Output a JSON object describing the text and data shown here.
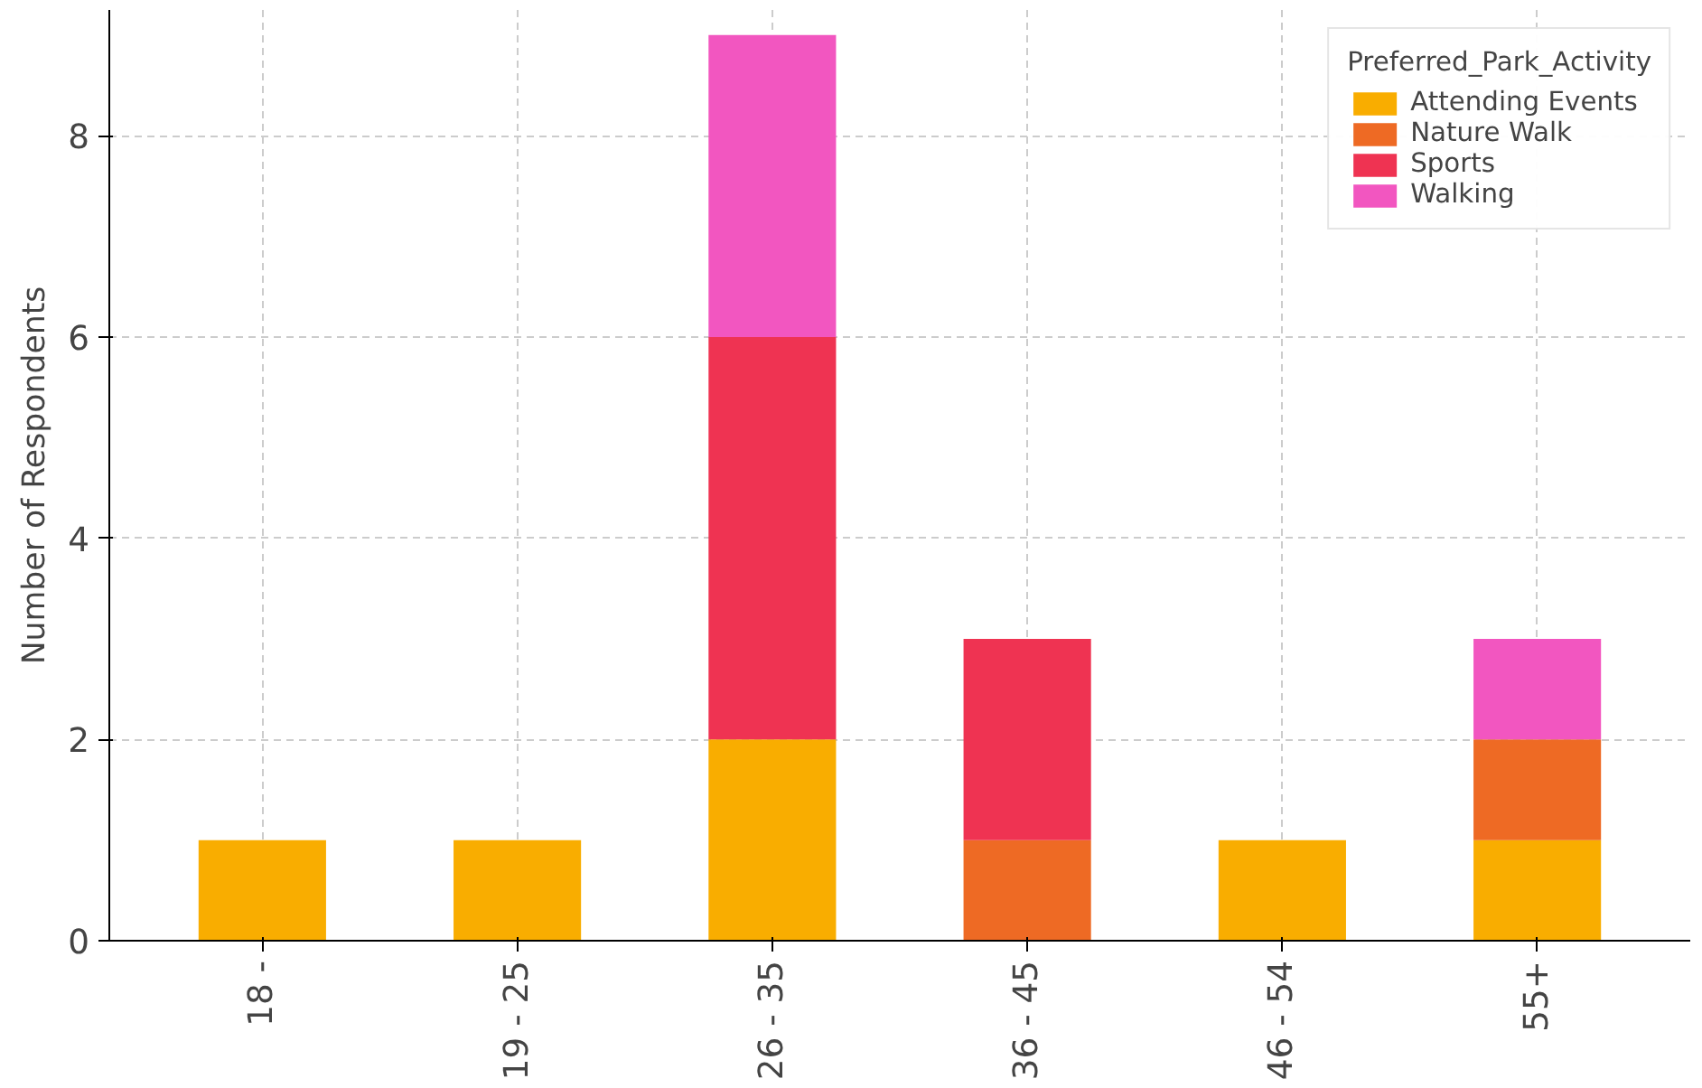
{
  "chart_data": {
    "type": "bar",
    "stacked": true,
    "ylabel": "Number of Respondents",
    "legend_title": "Preferred_Park_Activity",
    "categories": [
      "18 -",
      "19 - 25",
      "26 - 35",
      "36 - 45",
      "46 - 54",
      "55+"
    ],
    "series": [
      {
        "name": "Attending Events",
        "color": "#f9ad00",
        "values": [
          1,
          1,
          2,
          0,
          1,
          1
        ]
      },
      {
        "name": "Nature Walk",
        "color": "#ee6a24",
        "values": [
          0,
          0,
          0,
          1,
          0,
          1
        ]
      },
      {
        "name": "Sports",
        "color": "#ef3352",
        "values": [
          0,
          0,
          4,
          2,
          0,
          0
        ]
      },
      {
        "name": "Walking",
        "color": "#f256c0",
        "values": [
          0,
          0,
          3,
          0,
          0,
          1
        ]
      }
    ],
    "ylim": [
      0,
      9.25
    ],
    "yticks": [
      0,
      2,
      4,
      6,
      8
    ],
    "grid": true,
    "legend": "top right"
  }
}
